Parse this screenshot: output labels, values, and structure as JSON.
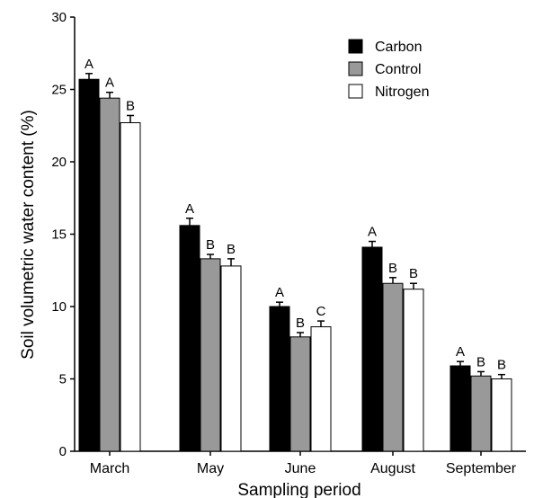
{
  "chart_data": {
    "type": "bar",
    "xlabel": "Sampling period",
    "ylabel": "Soil volumetric water content (%)",
    "ylim": [
      0,
      30
    ],
    "yticks": [
      "0",
      "5",
      "10",
      "15",
      "20",
      "25",
      "30"
    ],
    "categories": [
      "March",
      "May",
      "June",
      "August",
      "September"
    ],
    "legend_position": "top-right",
    "series": [
      {
        "name": "Carbon",
        "color": "#000000",
        "values": [
          25.7,
          15.6,
          10.0,
          14.1,
          5.9
        ],
        "errors": [
          0.4,
          0.5,
          0.3,
          0.4,
          0.3
        ],
        "letters": [
          "A",
          "A",
          "A",
          "A",
          "A"
        ]
      },
      {
        "name": "Control",
        "color": "#999999",
        "values": [
          24.4,
          13.3,
          7.9,
          11.6,
          5.2
        ],
        "errors": [
          0.4,
          0.3,
          0.3,
          0.4,
          0.3
        ],
        "letters": [
          "A",
          "B",
          "B",
          "B",
          "B"
        ]
      },
      {
        "name": "Nitrogen",
        "color": "#ffffff",
        "values": [
          22.7,
          12.8,
          8.6,
          11.2,
          5.0
        ],
        "errors": [
          0.5,
          0.5,
          0.4,
          0.4,
          0.3
        ],
        "letters": [
          "B",
          "B",
          "C",
          "B",
          "B"
        ]
      }
    ]
  }
}
